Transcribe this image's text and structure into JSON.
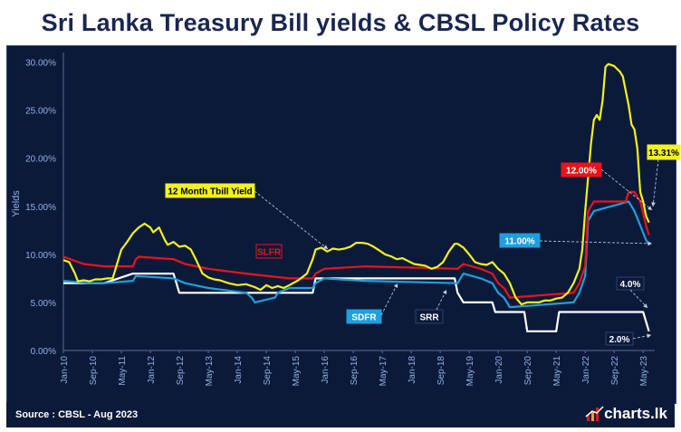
{
  "title": "Sri Lanka Treasury Bill yields & CBSL Policy Rates",
  "source": "Source : CBSL - Aug 2023",
  "brand": "charts.lk",
  "colors": {
    "background": "#0c1a3a",
    "tbill": "#f2f21e",
    "slfr": "#e8141c",
    "sdfr": "#1ea0dc",
    "srr": "#ffffff"
  },
  "chart_data": {
    "type": "line",
    "ylabel": "Yields",
    "ylim": [
      0,
      31
    ],
    "y_ticks": [
      "0.00%",
      "5.00%",
      "10.00%",
      "15.00%",
      "20.00%",
      "25.00%",
      "30.00%"
    ],
    "x_ticks": [
      "Jan-10",
      "Sep-10",
      "May-11",
      "Jan-12",
      "Sep-12",
      "May-13",
      "Jan-14",
      "Sep-14",
      "May-15",
      "Jan-16",
      "Sep-16",
      "May-17",
      "Jan-18",
      "Sep-18",
      "May-19",
      "Jan-20",
      "Sep-20",
      "May-21",
      "Jan-22",
      "Sep-22",
      "May-23"
    ],
    "grid": false,
    "series": [
      {
        "name": "12 Month Tbill Yield",
        "color": "#f2f21e",
        "label": "12 Month Tbill Yield",
        "points": [
          [
            0,
            9.4
          ],
          [
            2,
            9.2
          ],
          [
            4,
            8.0
          ],
          [
            5,
            7.2
          ],
          [
            7,
            7.3
          ],
          [
            9,
            7.2
          ],
          [
            11,
            7.4
          ],
          [
            13,
            7.4
          ],
          [
            15,
            7.5
          ],
          [
            17,
            7.5
          ],
          [
            18,
            8.5
          ],
          [
            20,
            10.5
          ],
          [
            22,
            11.3
          ],
          [
            24,
            12.2
          ],
          [
            26,
            12.8
          ],
          [
            28,
            13.2
          ],
          [
            30,
            12.8
          ],
          [
            31,
            12.3
          ],
          [
            33,
            12.8
          ],
          [
            35,
            11.5
          ],
          [
            36,
            11.0
          ],
          [
            38,
            11.3
          ],
          [
            40,
            10.8
          ],
          [
            42,
            10.9
          ],
          [
            44,
            10.5
          ],
          [
            46,
            9.3
          ],
          [
            48,
            8.0
          ],
          [
            50,
            7.6
          ],
          [
            52,
            7.4
          ],
          [
            54,
            7.3
          ],
          [
            57,
            7.0
          ],
          [
            60,
            6.8
          ],
          [
            63,
            6.9
          ],
          [
            66,
            6.6
          ],
          [
            68,
            6.3
          ],
          [
            70,
            6.8
          ],
          [
            72,
            6.5
          ],
          [
            74,
            6.7
          ],
          [
            76,
            6.5
          ],
          [
            78,
            6.8
          ],
          [
            81,
            7.3
          ],
          [
            84,
            8.0
          ],
          [
            86,
            9.5
          ],
          [
            87,
            10.5
          ],
          [
            89,
            10.7
          ],
          [
            91,
            10.3
          ],
          [
            93,
            10.6
          ],
          [
            95,
            10.5
          ],
          [
            97,
            10.6
          ],
          [
            99,
            10.8
          ],
          [
            101,
            11.2
          ],
          [
            103,
            11.2
          ],
          [
            105,
            11.1
          ],
          [
            107,
            10.8
          ],
          [
            109,
            10.4
          ],
          [
            111,
            10.0
          ],
          [
            113,
            9.8
          ],
          [
            115,
            9.5
          ],
          [
            117,
            9.6
          ],
          [
            119,
            9.3
          ],
          [
            121,
            9.0
          ],
          [
            123,
            8.9
          ],
          [
            125,
            8.8
          ],
          [
            127,
            8.5
          ],
          [
            129,
            8.7
          ],
          [
            131,
            9.2
          ],
          [
            133,
            10.3
          ],
          [
            135,
            11.1
          ],
          [
            136,
            11.1
          ],
          [
            138,
            10.7
          ],
          [
            140,
            10.0
          ],
          [
            142,
            9.2
          ],
          [
            144,
            9.0
          ],
          [
            146,
            8.9
          ],
          [
            148,
            9.2
          ],
          [
            150,
            8.5
          ],
          [
            152,
            8.0
          ],
          [
            154,
            7.0
          ],
          [
            156,
            5.5
          ],
          [
            158,
            4.8
          ],
          [
            160,
            5.0
          ],
          [
            162,
            5.0
          ],
          [
            164,
            5.0
          ],
          [
            166,
            5.2
          ],
          [
            168,
            5.2
          ],
          [
            170,
            5.4
          ],
          [
            172,
            5.5
          ],
          [
            174,
            6.0
          ],
          [
            176,
            7.0
          ],
          [
            178,
            8.5
          ],
          [
            179,
            10.5
          ],
          [
            180,
            14.5
          ],
          [
            181,
            18.0
          ],
          [
            182,
            21.5
          ],
          [
            183,
            24.0
          ],
          [
            184,
            24.5
          ],
          [
            185,
            24.0
          ],
          [
            186,
            26.0
          ],
          [
            187,
            29.5
          ],
          [
            188,
            29.8
          ],
          [
            190,
            29.6
          ],
          [
            192,
            29.0
          ],
          [
            193,
            28.5
          ],
          [
            194,
            27.0
          ],
          [
            195,
            25.5
          ],
          [
            196,
            23.5
          ],
          [
            197,
            23.0
          ],
          [
            198,
            21.0
          ],
          [
            199,
            16.5
          ],
          [
            200,
            15.5
          ],
          [
            201,
            14.0
          ],
          [
            202,
            13.31
          ]
        ]
      },
      {
        "name": "SLFR",
        "color": "#e8141c",
        "label": "SLFR",
        "points": [
          [
            0,
            9.75
          ],
          [
            7,
            9.0
          ],
          [
            14,
            8.75
          ],
          [
            24,
            8.75
          ],
          [
            25,
            9.5
          ],
          [
            26,
            9.75
          ],
          [
            38,
            9.5
          ],
          [
            42,
            9.0
          ],
          [
            50,
            8.5
          ],
          [
            63,
            8.0
          ],
          [
            78,
            7.5
          ],
          [
            86,
            7.5
          ],
          [
            87,
            8.0
          ],
          [
            90,
            8.5
          ],
          [
            104,
            8.75
          ],
          [
            136,
            8.5
          ],
          [
            138,
            9.0
          ],
          [
            144,
            8.5
          ],
          [
            148,
            8.0
          ],
          [
            150,
            7.0
          ],
          [
            152,
            6.5
          ],
          [
            154,
            5.5
          ],
          [
            176,
            6.0
          ],
          [
            178,
            7.0
          ],
          [
            180,
            8.75
          ],
          [
            181,
            14.5
          ],
          [
            183,
            15.5
          ],
          [
            194,
            15.5
          ],
          [
            195,
            16.5
          ],
          [
            197,
            16.5
          ],
          [
            199,
            15.5
          ],
          [
            201,
            13.0
          ],
          [
            202,
            12.0
          ]
        ]
      },
      {
        "name": "SDFR",
        "color": "#1ea0dc",
        "label": "SDFR",
        "points": [
          [
            0,
            7.25
          ],
          [
            9,
            7.0
          ],
          [
            14,
            7.0
          ],
          [
            24,
            7.25
          ],
          [
            25,
            7.75
          ],
          [
            38,
            7.5
          ],
          [
            42,
            7.0
          ],
          [
            50,
            6.5
          ],
          [
            63,
            6.0
          ],
          [
            65,
            5.5
          ],
          [
            66,
            5.0
          ],
          [
            73,
            5.5
          ],
          [
            74,
            6.0
          ],
          [
            78,
            6.5
          ],
          [
            86,
            6.5
          ],
          [
            87,
            7.0
          ],
          [
            90,
            7.5
          ],
          [
            104,
            7.25
          ],
          [
            136,
            7.0
          ],
          [
            138,
            8.0
          ],
          [
            144,
            7.5
          ],
          [
            148,
            7.0
          ],
          [
            150,
            6.0
          ],
          [
            152,
            5.5
          ],
          [
            154,
            4.5
          ],
          [
            176,
            5.0
          ],
          [
            178,
            6.0
          ],
          [
            180,
            7.75
          ],
          [
            181,
            13.5
          ],
          [
            183,
            14.5
          ],
          [
            195,
            15.5
          ],
          [
            197,
            14.5
          ],
          [
            199,
            13.0
          ],
          [
            201,
            11.5
          ],
          [
            202,
            11.0
          ]
        ]
      },
      {
        "name": "SRR",
        "color": "#ffffff",
        "label": "SRR",
        "points": [
          [
            0,
            7.0
          ],
          [
            14,
            7.0
          ],
          [
            24,
            8.0
          ],
          [
            38,
            8.0
          ],
          [
            40,
            6.0
          ],
          [
            86,
            6.0
          ],
          [
            87,
            7.5
          ],
          [
            135,
            7.5
          ],
          [
            136,
            6.0
          ],
          [
            138,
            5.0
          ],
          [
            148,
            5.0
          ],
          [
            149,
            4.0
          ],
          [
            159,
            4.0
          ],
          [
            160,
            2.0
          ],
          [
            170,
            2.0
          ],
          [
            171,
            4.0
          ],
          [
            200,
            4.0
          ],
          [
            202,
            2.0
          ]
        ]
      }
    ],
    "annotations": [
      {
        "text": "12.00%",
        "box": "#e8141c",
        "text_color": "#ffffff",
        "series": "SLFR"
      },
      {
        "text": "13.31%",
        "box": "#f2f21e",
        "text_color": "#000000",
        "series": "12 Month Tbill Yield"
      },
      {
        "text": "11.00%",
        "box": "#1ea0dc",
        "text_color": "#ffffff",
        "series": "SDFR"
      },
      {
        "text": "4.0%",
        "box": "#0c1a3a",
        "text_color": "#ffffff",
        "series": "SRR"
      },
      {
        "text": "2.0%",
        "box": "#0c1a3a",
        "text_color": "#ffffff",
        "series": "SRR"
      }
    ]
  }
}
